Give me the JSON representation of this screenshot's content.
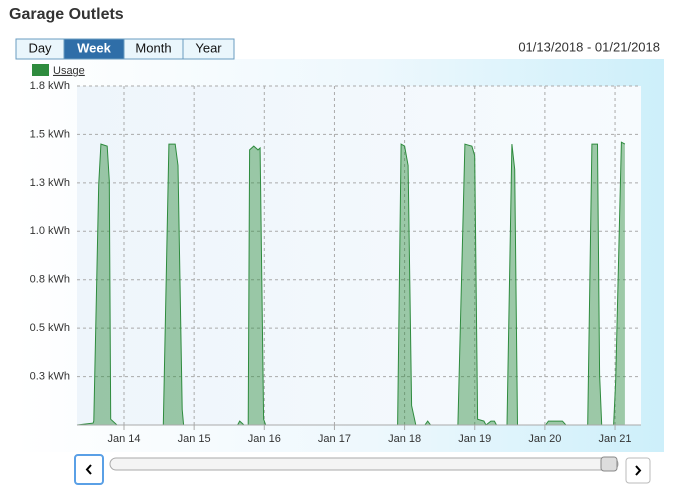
{
  "header": {
    "title": "Garage Outlets"
  },
  "tabs": [
    "Day",
    "Week",
    "Month",
    "Year"
  ],
  "active_tab": 1,
  "date_range": "01/13/2018 - 01/21/2018",
  "chart_data": {
    "type": "area",
    "x": [
      13.33,
      13.56,
      13.57,
      13.64,
      13.67,
      13.76,
      13.79,
      13.81,
      13.9,
      14.56,
      14.64,
      14.73,
      14.77,
      14.83,
      14.85,
      15.62,
      15.65,
      15.71,
      15.77,
      15.79,
      15.85,
      15.91,
      15.94,
      15.99,
      16.02,
      17.9,
      17.95,
      18.0,
      18.05,
      18.1,
      18.16,
      18.29,
      18.33,
      18.37,
      18.76,
      18.86,
      18.96,
      19.0,
      19.04,
      19.13,
      19.16,
      19.23,
      19.28,
      19.31,
      19.46,
      19.53,
      19.57,
      19.61,
      20.01,
      20.05,
      20.25,
      20.3,
      20.61,
      20.67,
      20.75,
      20.78,
      20.81,
      20.98,
      21.01,
      21.07,
      21.09,
      21.14
    ],
    "series": [
      {
        "name": "Usage",
        "color": "#2e8b3e",
        "values": [
          0,
          0.01,
          0.02,
          1.24,
          1.45,
          1.44,
          1.26,
          0.03,
          0,
          0,
          1.45,
          1.45,
          1.34,
          0.08,
          0,
          0,
          0.02,
          0,
          0,
          1.42,
          1.44,
          1.42,
          1.43,
          0.03,
          0,
          0,
          1.45,
          1.44,
          1.34,
          0.1,
          0,
          0,
          0.02,
          0,
          0,
          1.45,
          1.44,
          1.39,
          0.03,
          0.02,
          0,
          0.02,
          0.02,
          0,
          0,
          1.45,
          1.32,
          0,
          0,
          0.02,
          0.02,
          0,
          0,
          1.45,
          1.45,
          0.26,
          0,
          0,
          0.23,
          1.16,
          1.46,
          1.45
        ]
      }
    ],
    "xlim": [
      13.33,
      21.37
    ],
    "xticks": [
      {
        "value": 14,
        "label": "Jan 14"
      },
      {
        "value": 15,
        "label": "Jan 15"
      },
      {
        "value": 16,
        "label": "Jan 16"
      },
      {
        "value": 17,
        "label": "Jan 17"
      },
      {
        "value": 18,
        "label": "Jan 18"
      },
      {
        "value": 19,
        "label": "Jan 19"
      },
      {
        "value": 20,
        "label": "Jan 20"
      },
      {
        "value": 21,
        "label": "Jan 21"
      }
    ],
    "ylim": [
      0,
      1.75
    ],
    "yticks": [
      {
        "value": 0.25,
        "label": "0.3 kWh"
      },
      {
        "value": 0.5,
        "label": "0.5 kWh"
      },
      {
        "value": 0.75,
        "label": "0.8 kWh"
      },
      {
        "value": 1.0,
        "label": "1.0 kWh"
      },
      {
        "value": 1.25,
        "label": "1.3 kWh"
      },
      {
        "value": 1.5,
        "label": "1.5 kWh"
      },
      {
        "value": 1.75,
        "label": "1.8 kWh"
      }
    ],
    "grid": true,
    "legend": "top-left"
  }
}
